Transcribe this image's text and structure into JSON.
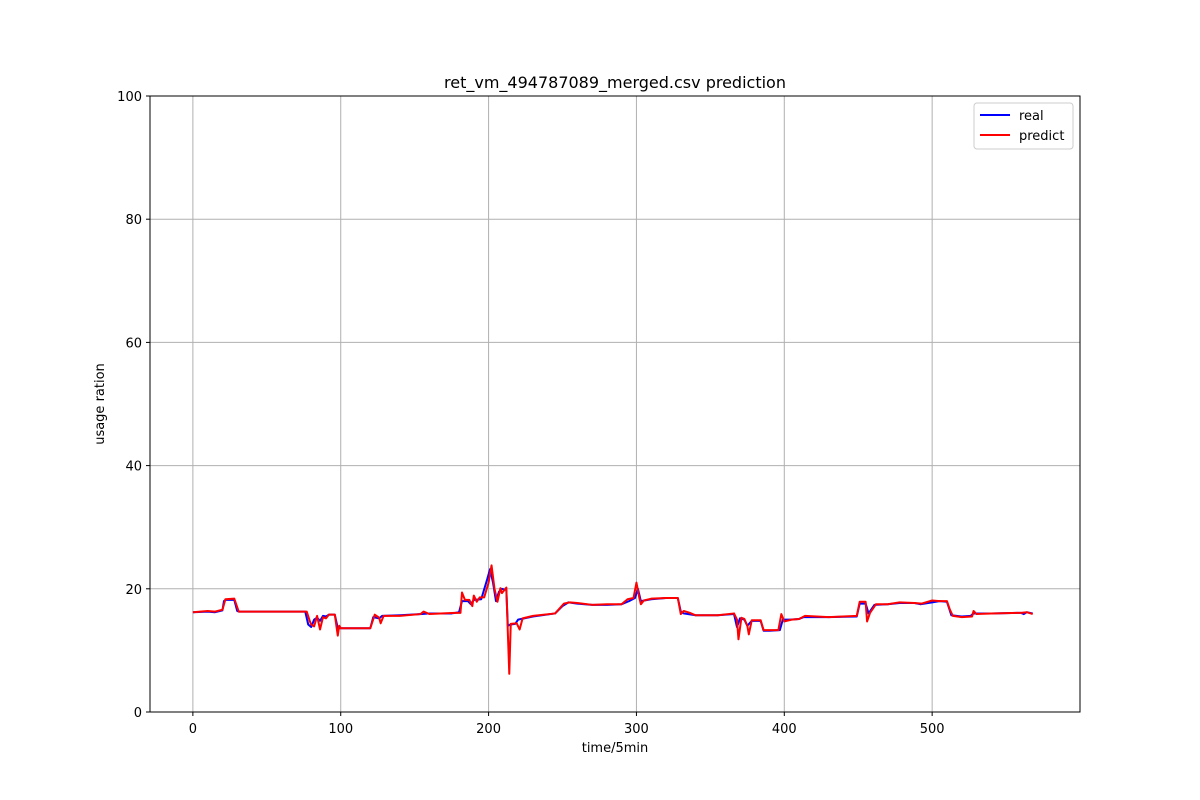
{
  "chart_data": {
    "type": "line",
    "title": "ret_vm_494787089_merged.csv prediction",
    "xlabel": "time/5min",
    "ylabel": "usage ration",
    "xlim": [
      -29,
      600
    ],
    "ylim": [
      0,
      100
    ],
    "xticks": [
      0,
      100,
      200,
      300,
      400,
      500
    ],
    "yticks": [
      0,
      20,
      40,
      60,
      80,
      100
    ],
    "grid": true,
    "legend_position": "top-right",
    "colors": {
      "real": "#0000ff",
      "predict": "#ff0000",
      "grid": "#b0b0b0"
    },
    "series": [
      {
        "name": "real",
        "color": "#0000ff",
        "points": [
          [
            0,
            16.2
          ],
          [
            10,
            16.3
          ],
          [
            15,
            16.2
          ],
          [
            20,
            16.5
          ],
          [
            21,
            18.0
          ],
          [
            22,
            18.2
          ],
          [
            28,
            18.2
          ],
          [
            30,
            16.4
          ],
          [
            31,
            16.3
          ],
          [
            60,
            16.3
          ],
          [
            76,
            16.3
          ],
          [
            78,
            14.2
          ],
          [
            80,
            13.8
          ],
          [
            82,
            15.0
          ],
          [
            84,
            15.3
          ],
          [
            86,
            14.8
          ],
          [
            88,
            15.6
          ],
          [
            90,
            15.5
          ],
          [
            92,
            15.8
          ],
          [
            96,
            15.8
          ],
          [
            98,
            13.6
          ],
          [
            100,
            13.6
          ],
          [
            120,
            13.6
          ],
          [
            122,
            15.4
          ],
          [
            126,
            15.2
          ],
          [
            128,
            15.6
          ],
          [
            140,
            15.7
          ],
          [
            155,
            15.9
          ],
          [
            160,
            16.0
          ],
          [
            175,
            16.0
          ],
          [
            180,
            16.2
          ],
          [
            182,
            18.0
          ],
          [
            186,
            18.0
          ],
          [
            188,
            17.5
          ],
          [
            190,
            18.2
          ],
          [
            195,
            18.3
          ],
          [
            199,
            21.5
          ],
          [
            201,
            23.2
          ],
          [
            203,
            21.0
          ],
          [
            205,
            18.0
          ],
          [
            207,
            19.5
          ],
          [
            209,
            20.0
          ],
          [
            212,
            19.8
          ],
          [
            213,
            14.0
          ],
          [
            215,
            14.2
          ],
          [
            218,
            14.3
          ],
          [
            220,
            15.0
          ],
          [
            230,
            15.5
          ],
          [
            245,
            16.0
          ],
          [
            250,
            17.2
          ],
          [
            254,
            17.8
          ],
          [
            260,
            17.6
          ],
          [
            270,
            17.4
          ],
          [
            280,
            17.4
          ],
          [
            290,
            17.5
          ],
          [
            295,
            18.0
          ],
          [
            299,
            18.5
          ],
          [
            301,
            20.0
          ],
          [
            303,
            18.0
          ],
          [
            310,
            18.3
          ],
          [
            320,
            18.5
          ],
          [
            328,
            18.5
          ],
          [
            330,
            16.3
          ],
          [
            332,
            16.0
          ],
          [
            340,
            15.7
          ],
          [
            355,
            15.7
          ],
          [
            366,
            15.9
          ],
          [
            368,
            13.8
          ],
          [
            370,
            15.2
          ],
          [
            373,
            15.0
          ],
          [
            375,
            14.0
          ],
          [
            378,
            14.8
          ],
          [
            384,
            14.8
          ],
          [
            386,
            13.2
          ],
          [
            390,
            13.2
          ],
          [
            397,
            13.3
          ],
          [
            399,
            15.0
          ],
          [
            404,
            15.0
          ],
          [
            410,
            15.1
          ],
          [
            413,
            15.4
          ],
          [
            430,
            15.4
          ],
          [
            449,
            15.5
          ],
          [
            451,
            17.6
          ],
          [
            455,
            17.6
          ],
          [
            457,
            16.0
          ],
          [
            461,
            17.4
          ],
          [
            470,
            17.5
          ],
          [
            478,
            17.7
          ],
          [
            488,
            17.7
          ],
          [
            492,
            17.5
          ],
          [
            500,
            17.8
          ],
          [
            505,
            18.0
          ],
          [
            510,
            17.9
          ],
          [
            513,
            15.7
          ],
          [
            520,
            15.5
          ],
          [
            526,
            15.6
          ],
          [
            528,
            16.0
          ],
          [
            540,
            16.0
          ],
          [
            560,
            16.1
          ],
          [
            562,
            15.9
          ],
          [
            564,
            16.2
          ],
          [
            568,
            16.0
          ]
        ]
      },
      {
        "name": "predict",
        "color": "#ff0000",
        "points": [
          [
            0,
            16.2
          ],
          [
            10,
            16.4
          ],
          [
            15,
            16.3
          ],
          [
            20,
            16.6
          ],
          [
            22,
            18.3
          ],
          [
            28,
            18.4
          ],
          [
            31,
            16.3
          ],
          [
            60,
            16.3
          ],
          [
            77,
            16.3
          ],
          [
            79,
            14.8
          ],
          [
            80,
            14.2
          ],
          [
            82,
            13.9
          ],
          [
            84,
            15.6
          ],
          [
            86,
            13.4
          ],
          [
            88,
            15.4
          ],
          [
            90,
            15.2
          ],
          [
            92,
            15.8
          ],
          [
            96,
            15.8
          ],
          [
            98,
            12.4
          ],
          [
            99,
            14.0
          ],
          [
            100,
            13.6
          ],
          [
            120,
            13.6
          ],
          [
            123,
            15.8
          ],
          [
            126,
            15.3
          ],
          [
            127,
            14.4
          ],
          [
            129,
            15.6
          ],
          [
            140,
            15.6
          ],
          [
            154,
            15.9
          ],
          [
            156,
            16.3
          ],
          [
            160,
            15.9
          ],
          [
            177,
            16.1
          ],
          [
            181,
            16.1
          ],
          [
            182,
            19.4
          ],
          [
            184,
            18.2
          ],
          [
            187,
            18.2
          ],
          [
            189,
            17.2
          ],
          [
            190,
            18.9
          ],
          [
            192,
            17.9
          ],
          [
            194,
            18.6
          ],
          [
            197,
            18.6
          ],
          [
            200,
            21.0
          ],
          [
            202,
            23.8
          ],
          [
            204,
            20.0
          ],
          [
            206,
            17.9
          ],
          [
            208,
            20.1
          ],
          [
            209,
            19.3
          ],
          [
            212,
            20.2
          ],
          [
            213,
            13.0
          ],
          [
            214,
            6.2
          ],
          [
            215,
            14.3
          ],
          [
            219,
            14.4
          ],
          [
            221,
            13.4
          ],
          [
            223,
            15.2
          ],
          [
            230,
            15.6
          ],
          [
            245,
            16.0
          ],
          [
            251,
            17.6
          ],
          [
            255,
            17.8
          ],
          [
            260,
            17.7
          ],
          [
            270,
            17.4
          ],
          [
            280,
            17.5
          ],
          [
            290,
            17.5
          ],
          [
            294,
            18.3
          ],
          [
            298,
            18.5
          ],
          [
            300,
            21.0
          ],
          [
            302,
            18.5
          ],
          [
            303,
            17.5
          ],
          [
            305,
            18.1
          ],
          [
            310,
            18.4
          ],
          [
            320,
            18.5
          ],
          [
            328,
            18.5
          ],
          [
            330,
            15.9
          ],
          [
            332,
            16.4
          ],
          [
            336,
            16.1
          ],
          [
            340,
            15.7
          ],
          [
            355,
            15.7
          ],
          [
            366,
            16.0
          ],
          [
            368,
            15.0
          ],
          [
            369,
            11.8
          ],
          [
            371,
            15.3
          ],
          [
            373,
            15.1
          ],
          [
            375,
            14.0
          ],
          [
            376,
            12.6
          ],
          [
            378,
            14.9
          ],
          [
            384,
            14.9
          ],
          [
            386,
            13.3
          ],
          [
            396,
            13.3
          ],
          [
            398,
            15.9
          ],
          [
            400,
            14.7
          ],
          [
            405,
            15.0
          ],
          [
            410,
            15.1
          ],
          [
            414,
            15.6
          ],
          [
            430,
            15.4
          ],
          [
            449,
            15.6
          ],
          [
            451,
            17.9
          ],
          [
            455,
            17.9
          ],
          [
            456,
            14.7
          ],
          [
            458,
            16.1
          ],
          [
            462,
            17.5
          ],
          [
            470,
            17.5
          ],
          [
            478,
            17.8
          ],
          [
            488,
            17.7
          ],
          [
            493,
            17.6
          ],
          [
            500,
            18.1
          ],
          [
            505,
            18.0
          ],
          [
            510,
            18.0
          ],
          [
            512,
            16.6
          ],
          [
            514,
            15.6
          ],
          [
            520,
            15.4
          ],
          [
            527,
            15.5
          ],
          [
            528,
            16.4
          ],
          [
            530,
            15.9
          ],
          [
            540,
            16.0
          ],
          [
            560,
            16.1
          ],
          [
            564,
            16.2
          ],
          [
            568,
            15.9
          ]
        ]
      }
    ]
  }
}
